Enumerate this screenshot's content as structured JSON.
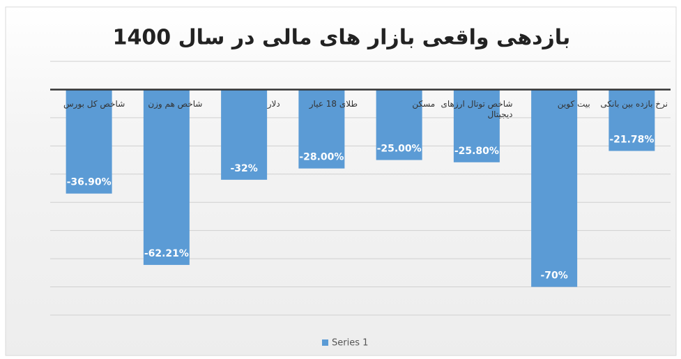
{
  "chart_data": {
    "type": "bar",
    "title": "بازدهی واقعی بازار های مالی در سال 1400",
    "categories": [
      "شاخص کل بورس",
      "شاخص هم وزن",
      "دلار",
      "طلای 18 عیار",
      "مسکن",
      "شاخص توتال ارزهای دیجیتال",
      "بیت کوین",
      "نرخ بازده بین بانکی"
    ],
    "series": [
      {
        "name": "Series 1",
        "color": "#5b9bd5",
        "values": [
          -36.9,
          -62.21,
          -32,
          -28,
          -25,
          -25.8,
          -70,
          -21.78
        ],
        "value_labels": [
          "-36.90%",
          "-62.21%",
          "-32%",
          "-28.00%",
          "-25.00%",
          "-25.80%",
          "-70%",
          "-21.78%"
        ]
      }
    ],
    "ylim": [
      -80,
      10
    ],
    "yticks": [
      -80,
      -70,
      -60,
      -50,
      -40,
      -30,
      -20,
      -10,
      0,
      10
    ],
    "grid": true,
    "legend": "bottom"
  }
}
